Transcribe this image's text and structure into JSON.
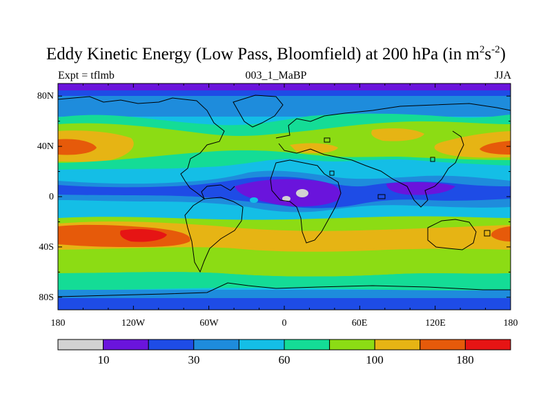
{
  "title": {
    "text": "Eddy Kinetic Energy (Low Pass, Bloomfield) at 200 hPa (in m",
    "sup1": "2",
    "s": "s",
    "sup2": "-2",
    "close": ")"
  },
  "subtitle": {
    "left": "Expt = tflmb",
    "center": "003_1_MaBP",
    "right": "JJA"
  },
  "map_data": {
    "variable": "Eddy Kinetic Energy",
    "level": "200 hPa",
    "season": "JJA",
    "projection": "cylindrical equidistant",
    "lon_range": [
      -180,
      180
    ],
    "lat_range": [
      -90,
      90
    ],
    "x_ticks": [
      "180",
      "120W",
      "60W",
      "0",
      "60E",
      "120E",
      "180"
    ],
    "y_ticks": [
      "80N",
      "40N",
      "0",
      "40S",
      "80S"
    ],
    "colorbar": {
      "colors": [
        "#d2d2d2",
        "#6a14dc",
        "#1e4ce6",
        "#1e8cdc",
        "#14bee6",
        "#14dc96",
        "#8cdc14",
        "#e6b414",
        "#e65a0a",
        "#e61414"
      ],
      "labels": [
        "10",
        "30",
        "60",
        "100",
        "180"
      ],
      "label_positions": [
        1.5,
        3.5,
        5.5,
        7.5,
        9.5
      ]
    }
  }
}
